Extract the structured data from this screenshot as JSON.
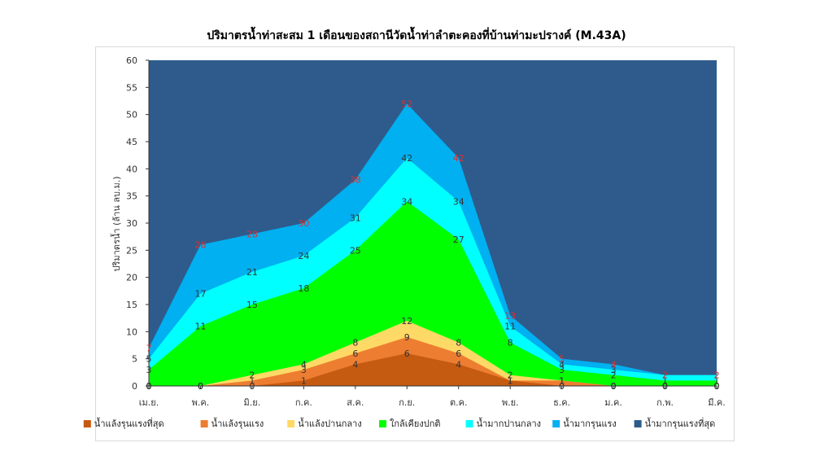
{
  "chart_data": {
    "type": "area",
    "title": "ปริมาตรน้ำท่าสะสม 1 เดือนของสถานีวัดน้ำท่าลำตะคองที่บ้านท่ามะปรางค์ (M.43A)",
    "ylabel": "ปริมาตรน้ำ (ล้าน ลบ.ม.)",
    "xlabel": "",
    "ylim": [
      0,
      60
    ],
    "yticks": [
      0,
      5,
      10,
      15,
      20,
      25,
      30,
      35,
      40,
      45,
      50,
      55,
      60
    ],
    "categories": [
      "เม.ย.",
      "พ.ค.",
      "มิ.ย.",
      "ก.ค.",
      "ส.ค.",
      "ก.ย.",
      "ต.ค.",
      "พ.ย.",
      "ธ.ค.",
      "ม.ค.",
      "ก.พ.",
      "มี.ค."
    ],
    "grid": false,
    "legend_position": "bottom",
    "series": [
      {
        "name": "น้ำแล้งรุนแรงที่สุด",
        "color": "#C55A11",
        "values": [
          0,
          0,
          0,
          1,
          4,
          6,
          4,
          1,
          0,
          0,
          0,
          0
        ],
        "labels": [
          "0",
          "0",
          "0",
          "1",
          "4",
          "6",
          "4",
          "1",
          "0",
          "0",
          "0",
          "0"
        ]
      },
      {
        "name": "น้ำแล้งรุนแรง",
        "color": "#ED7D31",
        "values": [
          0,
          0,
          1,
          3,
          6,
          9,
          6,
          1,
          1,
          0,
          0,
          0
        ],
        "labels": [
          "0",
          "0",
          "1",
          "3",
          "6",
          "9",
          "6",
          "1",
          "1",
          "0",
          "0",
          "0"
        ]
      },
      {
        "name": "น้ำแล้งปานกลาง",
        "color": "#FFD966",
        "values": [
          0,
          0,
          2,
          4,
          8,
          12,
          8,
          2,
          1,
          0,
          0,
          0
        ],
        "labels": [
          "0",
          "0",
          "2",
          "4",
          "8",
          "12",
          "8",
          "2",
          "1",
          "0",
          "0",
          "0"
        ]
      },
      {
        "name": "ใกล้เคียงปกติ",
        "color": "#00FF00",
        "values": [
          3,
          11,
          15,
          18,
          25,
          34,
          27,
          8,
          3,
          2,
          1,
          1
        ],
        "labels": [
          "3",
          "11",
          "15",
          "18",
          "25",
          "34",
          "27",
          "8",
          "3",
          "2",
          "1",
          "1"
        ]
      },
      {
        "name": "น้ำมากปานกลาง",
        "color": "#00FFFF",
        "values": [
          5,
          17,
          21,
          24,
          31,
          42,
          34,
          11,
          4,
          3,
          2,
          2
        ],
        "labels": [
          "5",
          "17",
          "21",
          "24",
          "31",
          "42",
          "34",
          "11",
          "4",
          "3",
          "2",
          "2"
        ]
      },
      {
        "name": "น้ำมากรุนแรง",
        "color": "#00B0F0",
        "values": [
          7,
          26,
          28,
          30,
          38,
          52,
          42,
          13,
          5,
          4,
          2,
          2
        ],
        "labels": [
          "7",
          "26",
          "28",
          "30",
          "38",
          "52",
          "42",
          "13",
          "5",
          "4",
          "2",
          "2"
        ]
      },
      {
        "name": "น้ำมากรุนแรงที่สุด",
        "color": "#2E5B8C",
        "values": [
          60,
          60,
          60,
          60,
          60,
          60,
          60,
          60,
          60,
          60,
          60,
          60
        ],
        "labels": []
      }
    ]
  }
}
